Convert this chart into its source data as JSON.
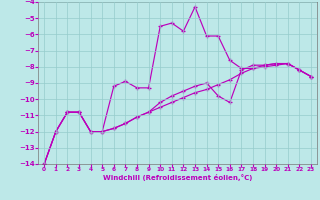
{
  "xlabel": "Windchill (Refroidissement éolien,°C)",
  "bg_color": "#bde8e8",
  "grid_color": "#96cccc",
  "line_color": "#bb00bb",
  "xlim": [
    -0.5,
    23.5
  ],
  "ylim": [
    -14,
    -4
  ],
  "xticks": [
    0,
    1,
    2,
    3,
    4,
    5,
    6,
    7,
    8,
    9,
    10,
    11,
    12,
    13,
    14,
    15,
    16,
    17,
    18,
    19,
    20,
    21,
    22,
    23
  ],
  "yticks": [
    -14,
    -13,
    -12,
    -11,
    -10,
    -9,
    -8,
    -7,
    -6,
    -5,
    -4
  ],
  "line1_x": [
    0,
    1,
    2,
    3,
    4,
    5,
    6,
    7,
    8,
    9,
    10,
    11,
    12,
    13,
    14,
    15,
    16,
    17,
    18,
    19,
    20,
    21,
    22,
    23
  ],
  "line1_y": [
    -14.0,
    -12.0,
    -10.8,
    -10.8,
    -12.0,
    -12.0,
    -9.2,
    -8.9,
    -9.3,
    -9.3,
    -5.5,
    -5.3,
    -5.8,
    -4.3,
    -6.1,
    -6.1,
    -7.6,
    -8.1,
    -8.1,
    -8.0,
    -7.9,
    -7.8,
    -8.2,
    -8.6
  ],
  "line2_x": [
    0,
    1,
    2,
    3,
    4,
    5,
    6,
    7,
    8,
    9,
    10,
    11,
    12,
    13,
    14,
    15,
    16,
    17,
    18,
    19,
    20,
    21,
    22,
    23
  ],
  "line2_y": [
    -14.0,
    -12.0,
    -10.8,
    -10.8,
    -12.0,
    -12.0,
    -11.8,
    -11.5,
    -11.1,
    -10.8,
    -10.5,
    -10.2,
    -9.9,
    -9.6,
    -9.4,
    -9.1,
    -8.8,
    -8.4,
    -8.1,
    -7.9,
    -7.8,
    -7.8,
    -8.2,
    -8.6
  ],
  "line3_x": [
    0,
    1,
    2,
    3,
    4,
    5,
    6,
    7,
    8,
    9,
    10,
    11,
    12,
    13,
    14,
    15,
    16,
    17,
    18,
    19,
    20,
    21,
    22,
    23
  ],
  "line3_y": [
    -14.0,
    -12.0,
    -10.8,
    -10.8,
    -12.0,
    -12.0,
    -11.8,
    -11.5,
    -11.1,
    -10.8,
    -10.2,
    -9.8,
    -9.5,
    -9.2,
    -9.0,
    -9.8,
    -10.2,
    -8.2,
    -7.9,
    -7.9,
    -7.8,
    -7.8,
    -8.2,
    -8.6
  ]
}
